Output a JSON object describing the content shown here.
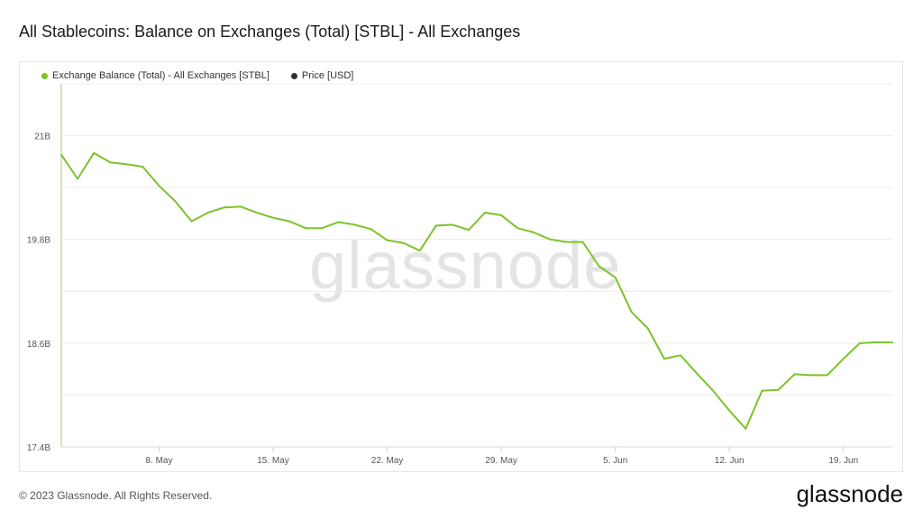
{
  "header": {
    "title": "All Stablecoins: Balance on Exchanges (Total) [STBL] - All Exchanges"
  },
  "legend": {
    "items": [
      {
        "label": "Exchange Balance (Total) - All Exchanges [STBL]",
        "color": "#7cc32a"
      },
      {
        "label": "Price [USD]",
        "color": "#333333"
      }
    ]
  },
  "watermark": "glassnode",
  "footer": {
    "copyright": "© 2023 Glassnode. All Rights Reserved.",
    "logo": "glassnode"
  },
  "chart_data": {
    "type": "line",
    "title": "All Stablecoins: Balance on Exchanges (Total) [STBL] - All Exchanges",
    "x_start": "2023-05-02",
    "x_end": "2023-06-22",
    "x_ticks": [
      {
        "date": "2023-05-08",
        "label": "8. May"
      },
      {
        "date": "2023-05-15",
        "label": "15. May"
      },
      {
        "date": "2023-05-22",
        "label": "22. May"
      },
      {
        "date": "2023-05-29",
        "label": "29. May"
      },
      {
        "date": "2023-06-05",
        "label": "5. Jun"
      },
      {
        "date": "2023-06-12",
        "label": "12. Jun"
      },
      {
        "date": "2023-06-19",
        "label": "19. Jun"
      }
    ],
    "y_ticks": [
      {
        "value": 17.4,
        "label": "17.4B"
      },
      {
        "value": 18.6,
        "label": "18.6B"
      },
      {
        "value": 19.8,
        "label": "19.8B"
      },
      {
        "value": 21.0,
        "label": "21B"
      }
    ],
    "ylim": [
      17.4,
      21.6
    ],
    "grid": true,
    "legend_position": "top-left",
    "series": [
      {
        "name": "Exchange Balance (Total) - All Exchanges [STBL]",
        "color": "#7cc32a",
        "x": [
          "2023-05-02",
          "2023-05-03",
          "2023-05-04",
          "2023-05-05",
          "2023-05-06",
          "2023-05-07",
          "2023-05-08",
          "2023-05-09",
          "2023-05-10",
          "2023-05-11",
          "2023-05-12",
          "2023-05-13",
          "2023-05-14",
          "2023-05-15",
          "2023-05-16",
          "2023-05-17",
          "2023-05-18",
          "2023-05-19",
          "2023-05-20",
          "2023-05-21",
          "2023-05-22",
          "2023-05-23",
          "2023-05-24",
          "2023-05-25",
          "2023-05-26",
          "2023-05-27",
          "2023-05-28",
          "2023-05-29",
          "2023-05-30",
          "2023-05-31",
          "2023-06-01",
          "2023-06-02",
          "2023-06-03",
          "2023-06-04",
          "2023-06-05",
          "2023-06-06",
          "2023-06-07",
          "2023-06-08",
          "2023-06-09",
          "2023-06-10",
          "2023-06-11",
          "2023-06-12",
          "2023-06-13",
          "2023-06-14",
          "2023-06-15",
          "2023-06-16",
          "2023-06-17",
          "2023-06-18",
          "2023-06-19",
          "2023-06-20",
          "2023-06-21",
          "2023-06-22"
        ],
        "values": [
          20.78,
          20.5,
          20.8,
          20.69,
          20.67,
          20.64,
          20.42,
          20.24,
          20.01,
          20.11,
          20.17,
          20.18,
          20.11,
          20.05,
          20.01,
          19.93,
          19.93,
          20.0,
          19.97,
          19.92,
          19.79,
          19.76,
          19.67,
          19.96,
          19.97,
          19.91,
          20.11,
          20.08,
          19.93,
          19.88,
          19.8,
          19.77,
          19.77,
          19.49,
          19.36,
          18.96,
          18.77,
          18.42,
          18.46,
          18.25,
          18.05,
          17.82,
          17.61,
          18.05,
          18.06,
          18.24,
          18.23,
          18.23,
          18.42,
          18.6,
          18.61,
          18.61
        ]
      }
    ]
  }
}
